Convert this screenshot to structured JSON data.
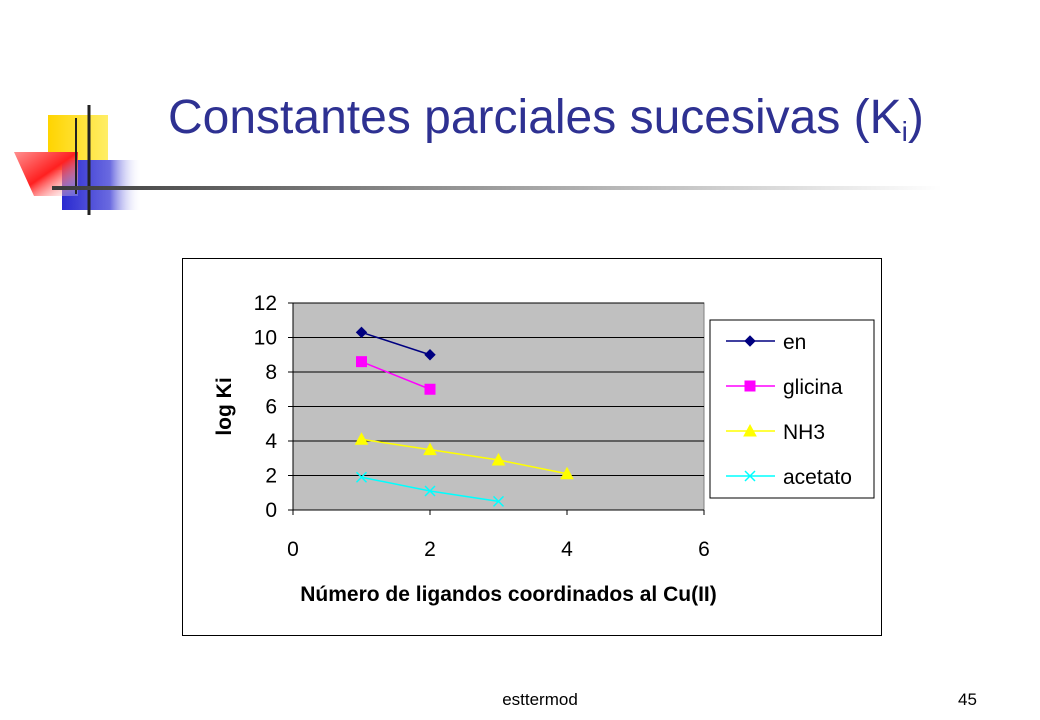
{
  "slide": {
    "title": "Constantes parciales sucesivas (K",
    "title_subscript": "i",
    "title_close": ")",
    "footer_text": "esttermod",
    "page_number": "45",
    "colors": {
      "title": "#2e3192"
    }
  },
  "chart_data": {
    "type": "line",
    "title": "",
    "xlabel": "Número de ligandos coordinados al Cu(II)",
    "ylabel": "log Ki",
    "xlim": [
      0,
      6
    ],
    "ylim": [
      0,
      12
    ],
    "xticks": [
      "0",
      "2",
      "4",
      "6"
    ],
    "yticks": [
      "0",
      "2",
      "4",
      "6",
      "8",
      "10",
      "12"
    ],
    "grid": "horizontal",
    "plot_background": "#c0c0c0",
    "legend_position": "right",
    "series": [
      {
        "name": "en",
        "x": [
          1,
          2
        ],
        "y": [
          10.3,
          9.0
        ],
        "color": "#000080",
        "marker": "diamond"
      },
      {
        "name": "glicina",
        "x": [
          1,
          2
        ],
        "y": [
          8.6,
          7.0
        ],
        "color": "#ff00ff",
        "marker": "square"
      },
      {
        "name": "NH3",
        "x": [
          1,
          2,
          3,
          4
        ],
        "y": [
          4.1,
          3.5,
          2.9,
          2.1
        ],
        "color": "#ffff00",
        "marker": "triangle"
      },
      {
        "name": "acetato",
        "x": [
          1,
          2,
          3
        ],
        "y": [
          1.9,
          1.1,
          0.5
        ],
        "color": "#00ffff",
        "marker": "x"
      }
    ]
  }
}
